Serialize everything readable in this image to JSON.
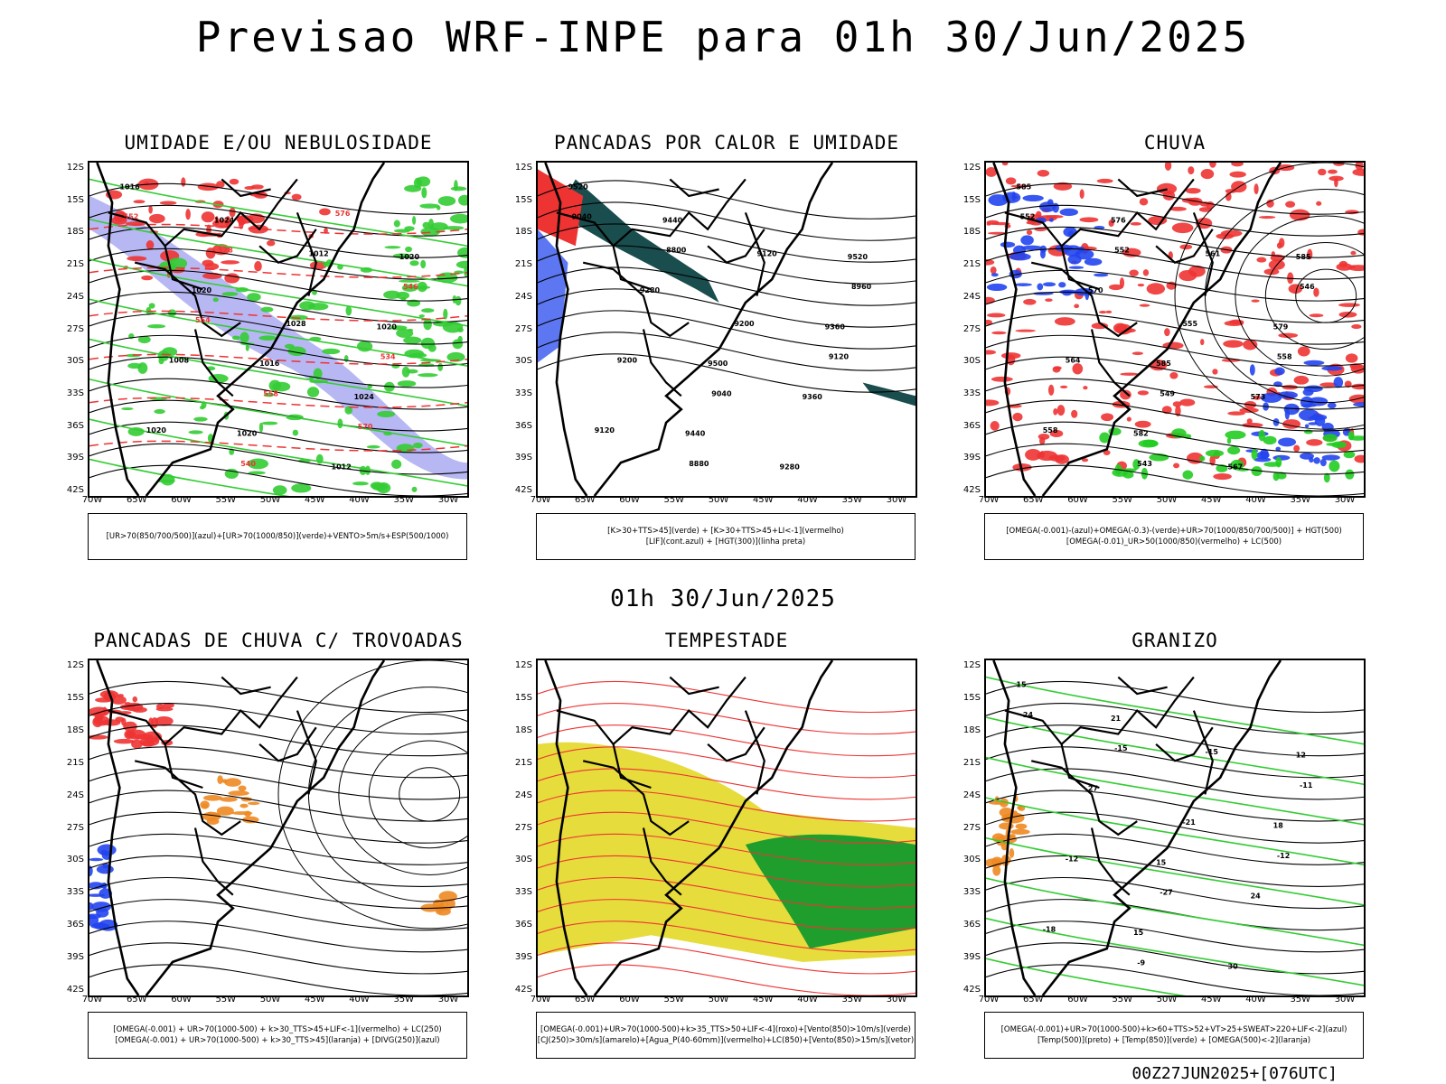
{
  "header": {
    "title": "Previsao WRF-INPE  para 01h 30/Jun/2025",
    "subtitle_time": "01h 30/Jun/2025",
    "footer": "00Z27JUN2025+[076UTC]"
  },
  "axes": {
    "lat_labels": [
      "12S",
      "15S",
      "18S",
      "21S",
      "24S",
      "27S",
      "30S",
      "33S",
      "36S",
      "39S",
      "42S"
    ],
    "lon_labels": [
      "70W",
      "65W",
      "60W",
      "55W",
      "50W",
      "45W",
      "40W",
      "35W",
      "30W"
    ]
  },
  "panels": [
    {
      "title": "UMIDADE E/OU NEBULOSIDADE",
      "legend": [
        "[UR>70(850/700/500)](azul)+[UR>70(1000/850)](verde)+VENTO>5m/s+ESP(500/1000)"
      ],
      "contour_labels": [
        "1016",
        "1016",
        "1020",
        "1020",
        "1020",
        "1024",
        "1024",
        "1020",
        "1012",
        "1008",
        "1012",
        "1020",
        "1028",
        "552",
        "558",
        "546",
        "540",
        "534",
        "528",
        "570",
        "564",
        "576"
      ],
      "colors": {
        "blue": "#9999ee",
        "green": "#33cc33",
        "red": "#ee3333"
      }
    },
    {
      "title": "PANCADAS POR CALOR E UMIDADE",
      "legend": [
        "[K>30+TTS>45](verde) + [K>30+TTS>45+LI<-1](vermelho)",
        "[LIF](cont.azul) + [HGT(300)](linha preta)"
      ],
      "contour_labels": [
        "9520",
        "9500",
        "9520",
        "9440",
        "9360",
        "9440",
        "9360",
        "9280",
        "9280",
        "9200",
        "9120",
        "9120",
        "9200",
        "9040",
        "9040",
        "8960",
        "8880",
        "9120",
        "8800"
      ],
      "colors": {
        "teal": "#1a4d4d",
        "red": "#ee3333",
        "blue": "#3355ee"
      }
    },
    {
      "title": "CHUVA",
      "legend": [
        "[OMEGA(-0.001)-(azul)+OMEGA(-0.3)-(verde)+UR>70(1000/850/700/500)] + HGT(500)",
        "[OMEGA(-0.01)_UR>50(1000/850)(vermelho) + LC(500)"
      ],
      "contour_labels": [
        "585",
        "585",
        "585",
        "582",
        "579",
        "576",
        "573",
        "570",
        "567",
        "564",
        "561",
        "558",
        "555",
        "552",
        "549",
        "546",
        "543",
        "558",
        "552"
      ],
      "colors": {
        "red": "#ee3333",
        "blue": "#2244ee",
        "green": "#22cc22"
      }
    },
    {
      "title": "PANCADAS DE CHUVA C/ TROVOADAS",
      "legend": [
        "[OMEGA(-0.001) + UR>70(1000-500) + k>30_TTS>45+LIF<-1](vermelho) + LC(250)",
        "[OMEGA(-0.001) + UR>70(1000-500) + k>30_TTS>45](laranja) + [DIVG(250)](azul)"
      ],
      "colors": {
        "red": "#ee3333",
        "orange": "#ee8822",
        "blue": "#2244ee"
      }
    },
    {
      "title": "TEMPESTADE",
      "legend": [
        "[OMEGA(-0.001)+UR>70(1000-500)+k>35_TTS>50+LIF<-4](roxo)+[Vento(850)>10m/s](verde)",
        "[CJ(250)>30m/s](amarelo)+[Agua_P(40-60mm)](vermelho)+LC(850)+[Vento(850)>15m/s](vetor)"
      ],
      "colors": {
        "yellow": "#e6dc3c",
        "green": "#1f9e2e",
        "red": "#ee3333"
      }
    },
    {
      "title": "GRANIZO",
      "legend": [
        "[OMEGA(-0.001)+UR>70(1000-500)+k>60+TTS>52+VT>25+SWEAT>220+LIF<-2](azul)",
        "[Temp(500)](preto) + [Temp(850)](verde) + [OMEGA(500)<-2](laranja)"
      ],
      "contour_labels": [
        "15",
        "15",
        "12",
        "15",
        "18",
        "21",
        "24",
        "27",
        "30",
        "-12",
        "-15",
        "-18",
        "-21",
        "-24",
        "-27",
        "-11",
        "-9",
        "-12",
        "-15"
      ],
      "colors": {
        "green": "#33cc33",
        "black": "#000000",
        "orange": "#ee8822"
      }
    }
  ]
}
